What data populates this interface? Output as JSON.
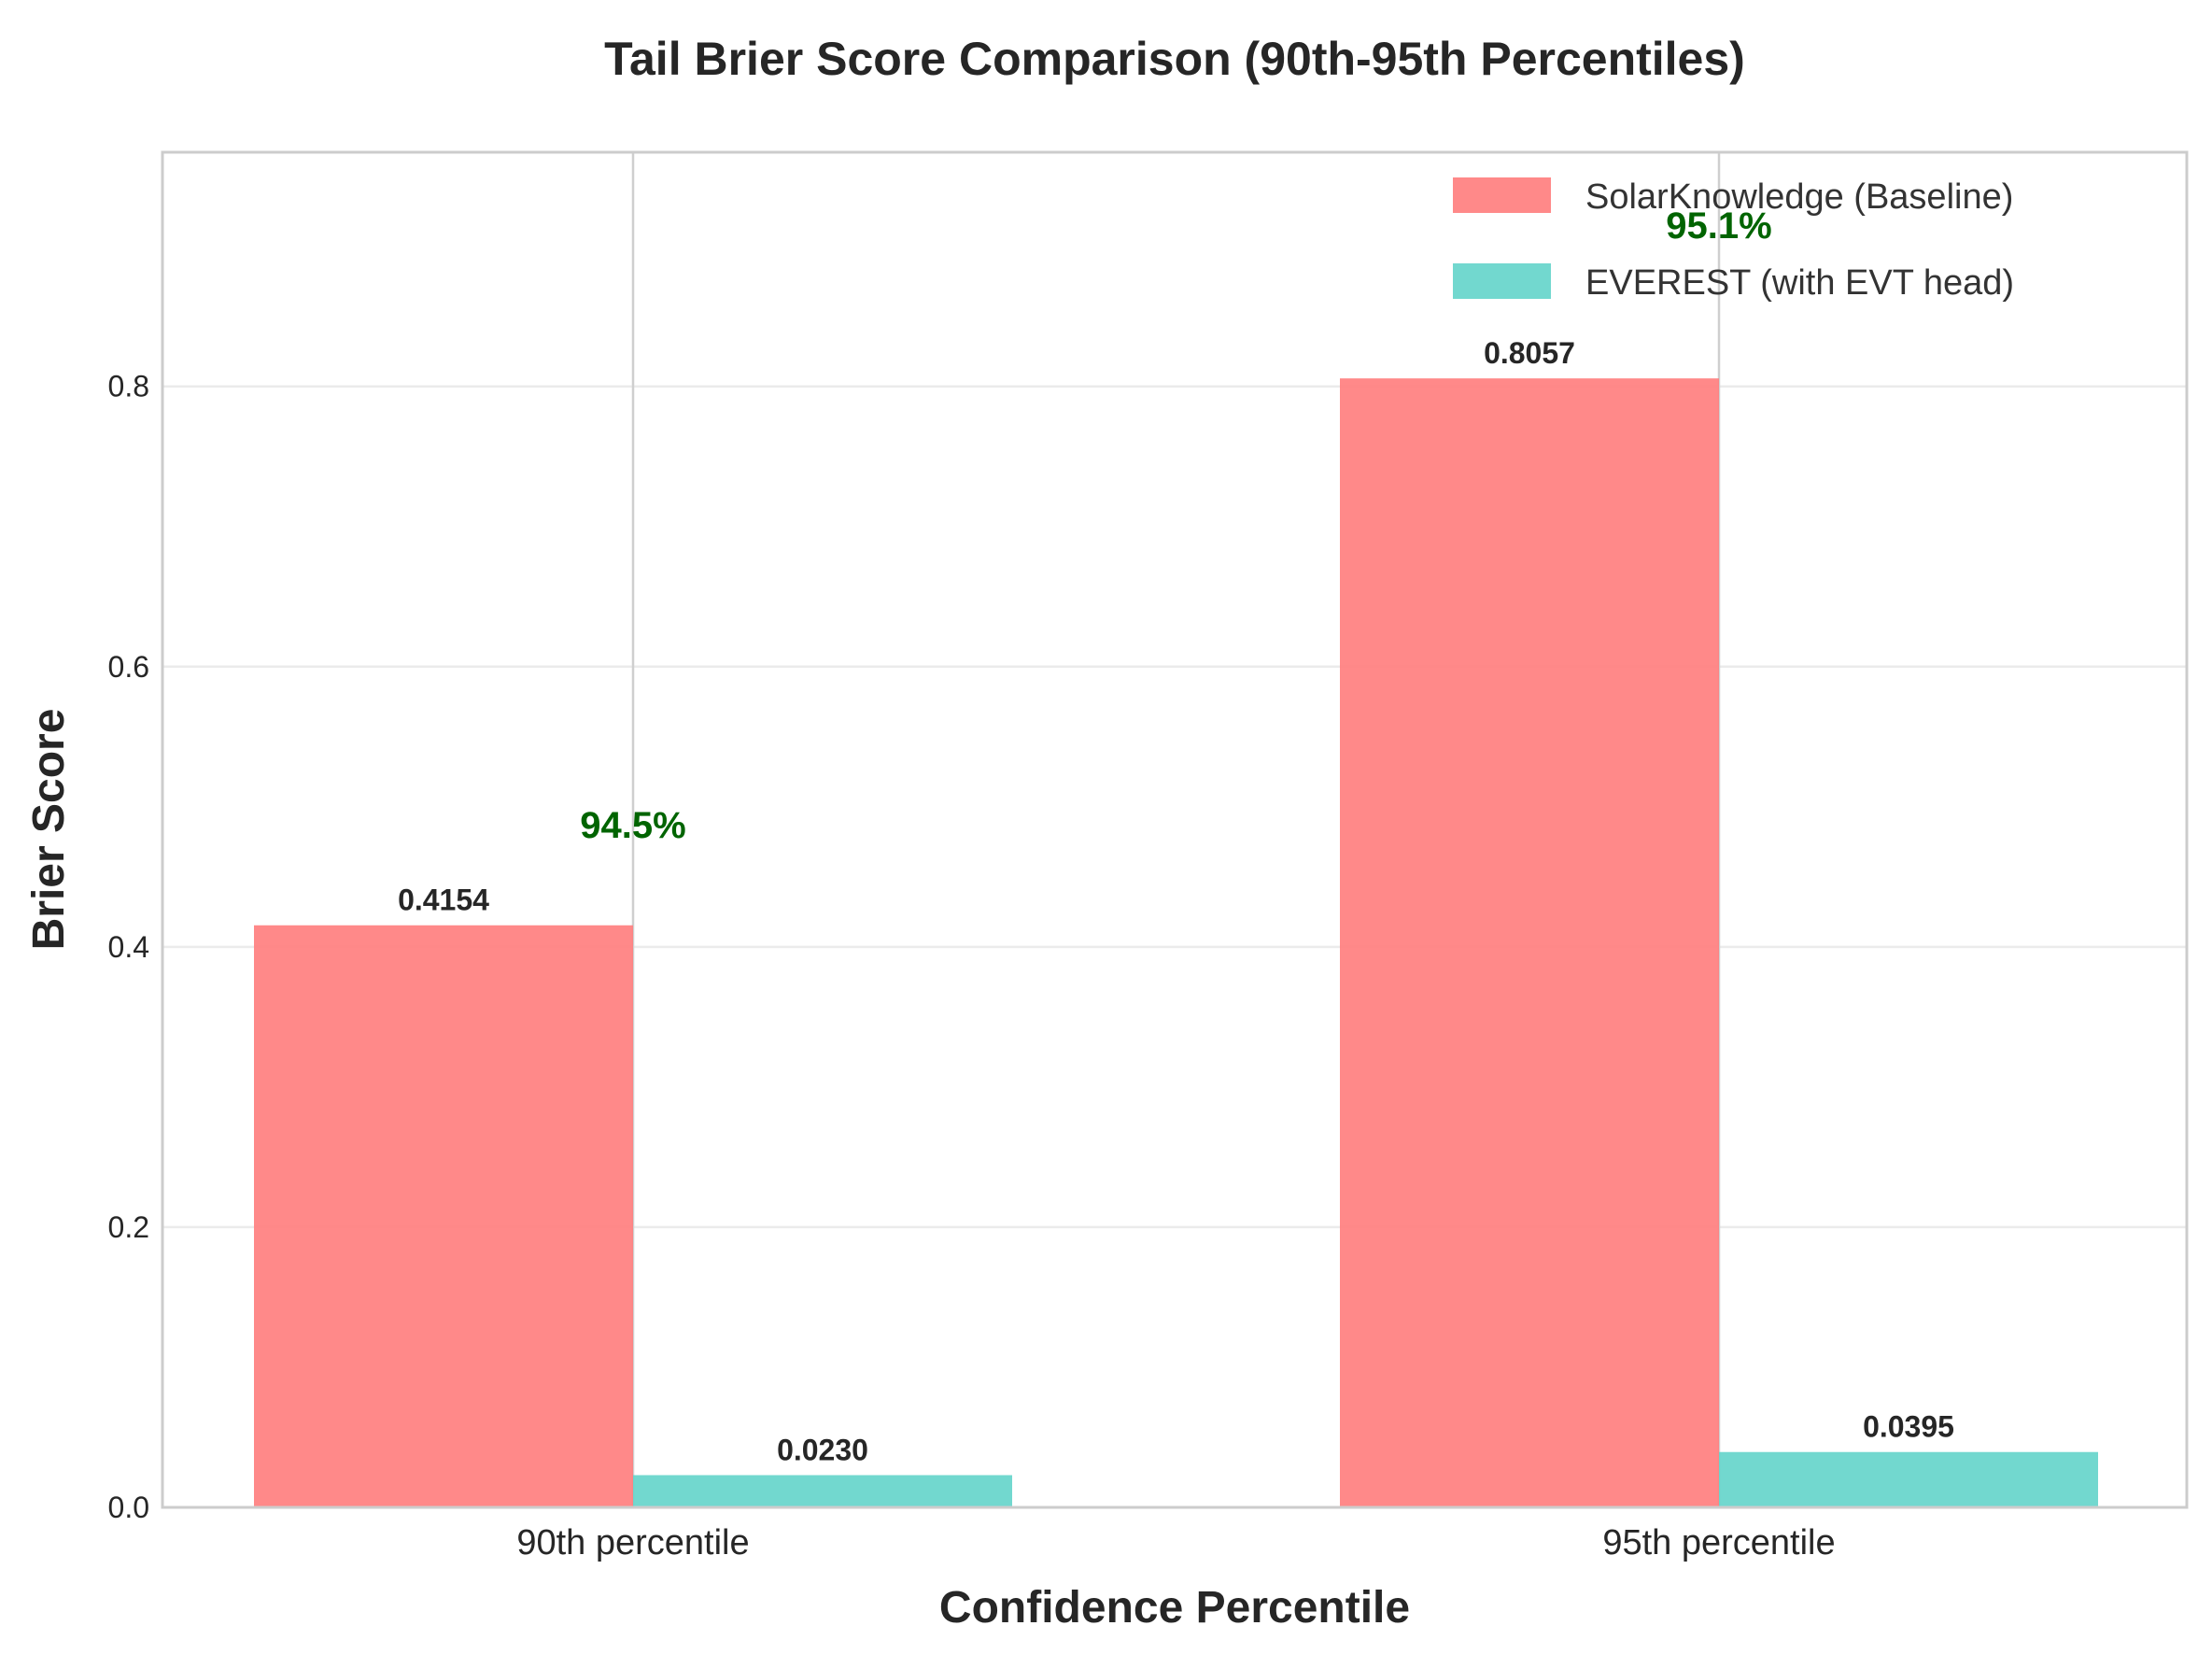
{
  "chart_data": {
    "type": "bar",
    "title": "Tail Brier Score Comparison (90th-95th Percentiles)",
    "xlabel": "Confidence Percentile",
    "ylabel": "Brier Score",
    "categories": [
      "90th percentile",
      "95th percentile"
    ],
    "series": [
      {
        "name": "SolarKnowledge (Baseline)",
        "values": [
          0.4154,
          0.8057
        ],
        "labels": [
          "0.4154",
          "0.8057"
        ],
        "color": "#ff7f7f"
      },
      {
        "name": "EVEREST (with EVT head)",
        "values": [
          0.023,
          0.0395
        ],
        "labels": [
          "0.0230",
          "0.0395"
        ],
        "color": "#66d5cb"
      }
    ],
    "annotations": [
      "94.5%",
      "95.1%"
    ],
    "annotation_color": "#006400",
    "ylim": [
      0,
      0.9671
    ],
    "yticks": [
      0.0,
      0.2,
      0.4,
      0.6,
      0.8
    ],
    "ytick_labels": [
      "0.0",
      "0.2",
      "0.4",
      "0.6",
      "0.8"
    ],
    "grid": true,
    "legend_position": "top-right"
  }
}
